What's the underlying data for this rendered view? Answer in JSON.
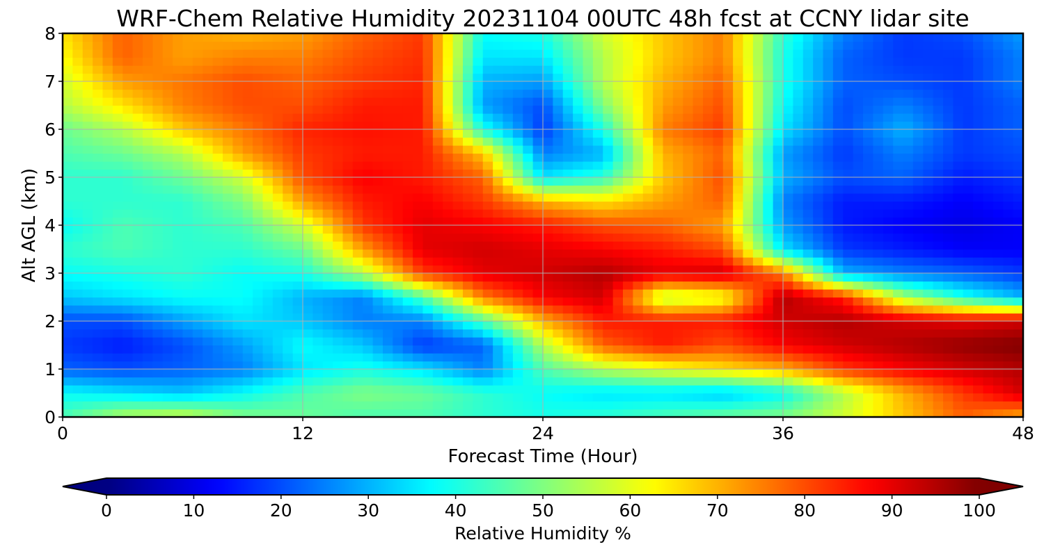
{
  "chart_data": {
    "type": "heatmap",
    "title": "WRF-Chem Relative Humidity 20231104 00UTC 48h fcst at CCNY lidar site",
    "xlabel": "Forecast Time (Hour)",
    "ylabel": "Alt AGL (km)",
    "x_ticks": [
      "0",
      "12",
      "24",
      "36",
      "48"
    ],
    "y_ticks": [
      "0",
      "1",
      "2",
      "3",
      "4",
      "5",
      "6",
      "7",
      "8"
    ],
    "xlim": [
      0,
      48
    ],
    "ylim": [
      0,
      8
    ],
    "grid": true,
    "colormap": "jet",
    "colorbar": {
      "label": "Relative Humidity %",
      "ticks": [
        "0",
        "10",
        "20",
        "30",
        "40",
        "50",
        "60",
        "70",
        "80",
        "90",
        "100"
      ],
      "range": [
        0,
        100
      ],
      "extend": "both",
      "orientation": "horizontal"
    },
    "x": [
      0,
      3,
      6,
      9,
      12,
      15,
      18,
      21,
      24,
      27,
      30,
      33,
      36,
      39,
      42,
      45,
      48
    ],
    "y": [
      0,
      0.5,
      1,
      1.5,
      2,
      2.5,
      3,
      3.5,
      4,
      4.5,
      5,
      5.5,
      6,
      6.5,
      7,
      7.5,
      8
    ],
    "z": [
      [
        45,
        55,
        58,
        50,
        48,
        45,
        45,
        42,
        40,
        42,
        45,
        48,
        50,
        58,
        68,
        78,
        70
      ],
      [
        38,
        35,
        32,
        38,
        45,
        50,
        48,
        42,
        38,
        35,
        35,
        32,
        38,
        55,
        70,
        82,
        92
      ],
      [
        22,
        20,
        22,
        25,
        35,
        40,
        35,
        25,
        45,
        55,
        60,
        65,
        70,
        82,
        88,
        92,
        95
      ],
      [
        18,
        15,
        20,
        28,
        38,
        32,
        18,
        22,
        55,
        78,
        85,
        80,
        88,
        92,
        95,
        98,
        100
      ],
      [
        20,
        20,
        28,
        35,
        32,
        25,
        25,
        45,
        70,
        85,
        85,
        85,
        92,
        95,
        92,
        90,
        92
      ],
      [
        32,
        35,
        38,
        38,
        30,
        25,
        45,
        75,
        88,
        92,
        55,
        60,
        95,
        85,
        55,
        40,
        30
      ],
      [
        38,
        40,
        42,
        38,
        40,
        55,
        82,
        90,
        92,
        95,
        90,
        92,
        75,
        30,
        25,
        22,
        18
      ],
      [
        42,
        45,
        42,
        42,
        48,
        72,
        90,
        92,
        90,
        88,
        85,
        80,
        35,
        18,
        15,
        12,
        12
      ],
      [
        38,
        45,
        42,
        45,
        58,
        82,
        90,
        88,
        85,
        80,
        78,
        72,
        28,
        15,
        12,
        10,
        12
      ],
      [
        42,
        42,
        42,
        50,
        72,
        85,
        88,
        82,
        70,
        65,
        72,
        78,
        25,
        15,
        15,
        12,
        15
      ],
      [
        42,
        42,
        48,
        58,
        80,
        88,
        85,
        78,
        35,
        42,
        68,
        80,
        30,
        20,
        22,
        15,
        18
      ],
      [
        45,
        48,
        55,
        72,
        82,
        85,
        85,
        68,
        25,
        30,
        70,
        78,
        28,
        18,
        25,
        18,
        20
      ],
      [
        48,
        55,
        68,
        76,
        84,
        86,
        85,
        40,
        18,
        40,
        75,
        82,
        35,
        20,
        30,
        18,
        22
      ],
      [
        55,
        65,
        75,
        80,
        80,
        85,
        85,
        28,
        20,
        50,
        72,
        80,
        38,
        20,
        25,
        18,
        22
      ],
      [
        58,
        72,
        76,
        80,
        78,
        82,
        84,
        30,
        28,
        55,
        70,
        78,
        40,
        22,
        20,
        18,
        25
      ],
      [
        62,
        78,
        72,
        75,
        75,
        80,
        83,
        35,
        35,
        55,
        68,
        75,
        40,
        22,
        18,
        18,
        25
      ],
      [
        65,
        78,
        72,
        70,
        72,
        78,
        82,
        38,
        40,
        58,
        68,
        75,
        42,
        25,
        18,
        20,
        28
      ]
    ]
  }
}
